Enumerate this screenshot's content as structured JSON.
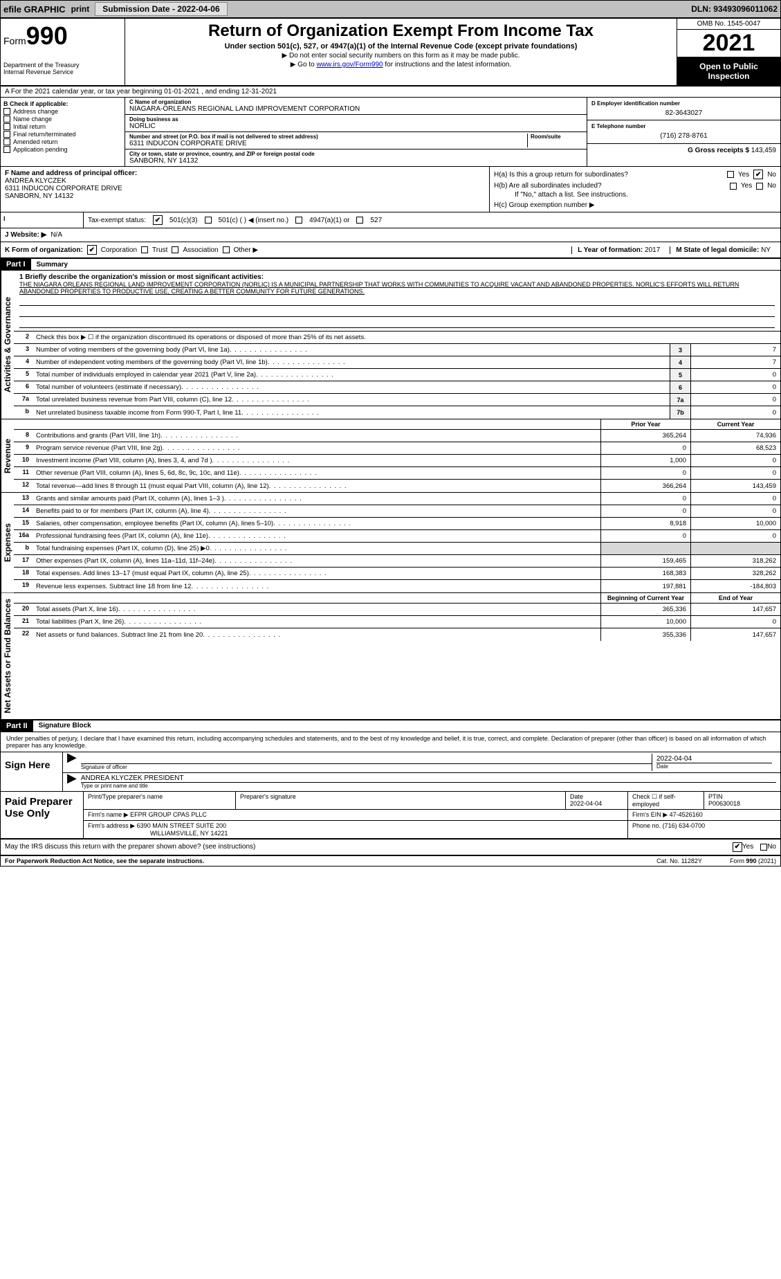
{
  "topbar": {
    "efile": "efile GRAPHIC",
    "print": "print",
    "submission_btn": "Submission Date - 2022-04-06",
    "dln": "DLN: 93493096011062"
  },
  "header": {
    "form_prefix": "Form",
    "form_num": "990",
    "dept": "Department of the Treasury\nInternal Revenue Service",
    "title": "Return of Organization Exempt From Income Tax",
    "sub": "Under section 501(c), 527, or 4947(a)(1) of the Internal Revenue Code (except private foundations)",
    "line1": "▶ Do not enter social security numbers on this form as it may be made public.",
    "line2_pre": "▶ Go to ",
    "line2_link": "www.irs.gov/Form990",
    "line2_post": " for instructions and the latest information.",
    "omb": "OMB No. 1545-0047",
    "year": "2021",
    "open": "Open to Public Inspection"
  },
  "a_line": "A For the 2021 calendar year, or tax year beginning 01-01-2021    , and ending 12-31-2021",
  "b": {
    "hdr": "B Check if applicable:",
    "items": [
      "Address change",
      "Name change",
      "Initial return",
      "Final return/terminated",
      "Amended return",
      "Application pending"
    ]
  },
  "c": {
    "name_lbl": "C Name of organization",
    "name": "NIAGARA-ORLEANS REGIONAL LAND IMPROVEMENT CORPORATION",
    "dba_lbl": "Doing business as",
    "dba": "NORLIC",
    "addr_lbl": "Number and street (or P.O. box if mail is not delivered to street address)",
    "room_lbl": "Room/suite",
    "addr": "6311 INDUCON CORPORATE DRIVE",
    "city_lbl": "City or town, state or province, country, and ZIP or foreign postal code",
    "city": "SANBORN, NY  14132"
  },
  "d": {
    "lbl": "D Employer identification number",
    "val": "82-3643027"
  },
  "e": {
    "lbl": "E Telephone number",
    "val": "(716) 278-8761"
  },
  "g": {
    "lbl": "G Gross receipts $",
    "val": "143,459"
  },
  "f": {
    "lbl": "F  Name and address of principal officer:",
    "name": "ANDREA KLYCZEK",
    "addr": "6311 INDUCON CORPORATE DRIVE",
    "city": "SANBORN, NY  14132"
  },
  "h": {
    "a": "H(a)  Is this a group return for subordinates?",
    "b": "H(b)  Are all subordinates included?",
    "b2": "If \"No,\" attach a list. See instructions.",
    "c": "H(c)  Group exemption number ▶",
    "yes": "Yes",
    "no": "No"
  },
  "i": {
    "lbl": "Tax-exempt status:",
    "o1": "501(c)(3)",
    "o2": "501(c) (  ) ◀ (insert no.)",
    "o3": "4947(a)(1) or",
    "o4": "527"
  },
  "j": {
    "lbl": "J   Website: ▶",
    "val": "N/A"
  },
  "k": {
    "lbl": "K Form of organization:",
    "o1": "Corporation",
    "o2": "Trust",
    "o3": "Association",
    "o4": "Other ▶",
    "l_lbl": "L Year of formation:",
    "l_val": "2017",
    "m_lbl": "M State of legal domicile:",
    "m_val": "NY"
  },
  "part1": {
    "hdr": "Part I",
    "title": "Summary",
    "q1": "1  Briefly describe the organization's mission or most significant activities:",
    "mission": "THE NIAGARA ORLEANS REGIONAL LAND IMPROVEMENT CORPORATION (NORLIC) IS A MUNICIPAL PARTNERSHIP THAT WORKS WITH COMMUNITIES TO ACQUIRE VACANT AND ABANDONED PROPERTIES. NORLIC'S EFFORTS WILL RETURN ABANDONED PROPERTIES TO PRODUCTIVE USE, CREATING A BETTER COMMUNITY FOR FUTURE GENERATIONS.",
    "q2": "Check this box ▶ ☐ if the organization discontinued its operations or disposed of more than 25% of its net assets.",
    "tab_gov": "Activities & Governance",
    "tab_rev": "Revenue",
    "tab_exp": "Expenses",
    "tab_net": "Net Assets or Fund Balances",
    "lines_gov": [
      {
        "n": "3",
        "t": "Number of voting members of the governing body (Part VI, line 1a)",
        "box": "3",
        "v": "7"
      },
      {
        "n": "4",
        "t": "Number of independent voting members of the governing body (Part VI, line 1b)",
        "box": "4",
        "v": "7"
      },
      {
        "n": "5",
        "t": "Total number of individuals employed in calendar year 2021 (Part V, line 2a)",
        "box": "5",
        "v": "0"
      },
      {
        "n": "6",
        "t": "Total number of volunteers (estimate if necessary)",
        "box": "6",
        "v": "0"
      },
      {
        "n": "7a",
        "t": "Total unrelated business revenue from Part VIII, column (C), line 12",
        "box": "7a",
        "v": "0"
      },
      {
        "n": "b",
        "t": "Net unrelated business taxable income from Form 990-T, Part I, line 11",
        "box": "7b",
        "v": "0"
      }
    ],
    "col_prior": "Prior Year",
    "col_curr": "Current Year",
    "lines_rev": [
      {
        "n": "8",
        "t": "Contributions and grants (Part VIII, line 1h)",
        "p": "365,264",
        "c": "74,936"
      },
      {
        "n": "9",
        "t": "Program service revenue (Part VIII, line 2g)",
        "p": "0",
        "c": "68,523"
      },
      {
        "n": "10",
        "t": "Investment income (Part VIII, column (A), lines 3, 4, and 7d )",
        "p": "1,000",
        "c": "0"
      },
      {
        "n": "11",
        "t": "Other revenue (Part VIII, column (A), lines 5, 6d, 8c, 9c, 10c, and 11e)",
        "p": "0",
        "c": "0"
      },
      {
        "n": "12",
        "t": "Total revenue—add lines 8 through 11 (must equal Part VIII, column (A), line 12)",
        "p": "366,264",
        "c": "143,459"
      }
    ],
    "lines_exp": [
      {
        "n": "13",
        "t": "Grants and similar amounts paid (Part IX, column (A), lines 1–3 )",
        "p": "0",
        "c": "0"
      },
      {
        "n": "14",
        "t": "Benefits paid to or for members (Part IX, column (A), line 4)",
        "p": "0",
        "c": "0"
      },
      {
        "n": "15",
        "t": "Salaries, other compensation, employee benefits (Part IX, column (A), lines 5–10)",
        "p": "8,918",
        "c": "10,000"
      },
      {
        "n": "16a",
        "t": "Professional fundraising fees (Part IX, column (A), line 11e)",
        "p": "0",
        "c": "0"
      },
      {
        "n": "b",
        "t": "Total fundraising expenses (Part IX, column (D), line 25) ▶0",
        "p": "",
        "c": "",
        "shade": true
      },
      {
        "n": "17",
        "t": "Other expenses (Part IX, column (A), lines 11a–11d, 11f–24e)",
        "p": "159,465",
        "c": "318,262"
      },
      {
        "n": "18",
        "t": "Total expenses. Add lines 13–17 (must equal Part IX, column (A), line 25)",
        "p": "168,383",
        "c": "328,262"
      },
      {
        "n": "19",
        "t": "Revenue less expenses. Subtract line 18 from line 12",
        "p": "197,881",
        "c": "-184,803"
      }
    ],
    "col_beg": "Beginning of Current Year",
    "col_end": "End of Year",
    "lines_net": [
      {
        "n": "20",
        "t": "Total assets (Part X, line 16)",
        "p": "365,336",
        "c": "147,657"
      },
      {
        "n": "21",
        "t": "Total liabilities (Part X, line 26)",
        "p": "10,000",
        "c": "0"
      },
      {
        "n": "22",
        "t": "Net assets or fund balances. Subtract line 21 from line 20",
        "p": "355,336",
        "c": "147,657"
      }
    ]
  },
  "part2": {
    "hdr": "Part II",
    "title": "Signature Block",
    "decl": "Under penalties of perjury, I declare that I have examined this return, including accompanying schedules and statements, and to the best of my knowledge and belief, it is true, correct, and complete. Declaration of preparer (other than officer) is based on all information of which preparer has any knowledge.",
    "sign_here": "Sign Here",
    "sig_officer": "Signature of officer",
    "sig_date": "Date",
    "date_val": "2022-04-04",
    "name_title": "ANDREA KLYCZEK  PRESIDENT",
    "type_lbl": "Type or print name and title",
    "paid": "Paid Preparer Use Only",
    "p_name_lbl": "Print/Type preparer's name",
    "p_sig_lbl": "Preparer's signature",
    "p_date_lbl": "Date",
    "p_date": "2022-04-04",
    "p_check": "Check ☐ if self-employed",
    "ptin_lbl": "PTIN",
    "ptin": "P00630018",
    "firm_name_lbl": "Firm's name    ▶",
    "firm_name": "EFPR GROUP CPAS PLLC",
    "firm_ein_lbl": "Firm's EIN ▶",
    "firm_ein": "47-4526160",
    "firm_addr_lbl": "Firm's address ▶",
    "firm_addr1": "6390 MAIN STREET SUITE 200",
    "firm_addr2": "WILLIAMSVILLE, NY  14221",
    "phone_lbl": "Phone no.",
    "phone": "(716) 634-0700",
    "may_irs": "May the IRS discuss this return with the preparer shown above? (see instructions)",
    "yes": "Yes",
    "no": "No"
  },
  "footer": {
    "pra": "For Paperwork Reduction Act Notice, see the separate instructions.",
    "cat": "Cat. No. 11282Y",
    "form": "Form 990 (2021)"
  },
  "colors": {
    "topbar_bg": "#c0c0c0",
    "link": "#0000cc",
    "black": "#000000",
    "shade": "#d8d8d8"
  }
}
